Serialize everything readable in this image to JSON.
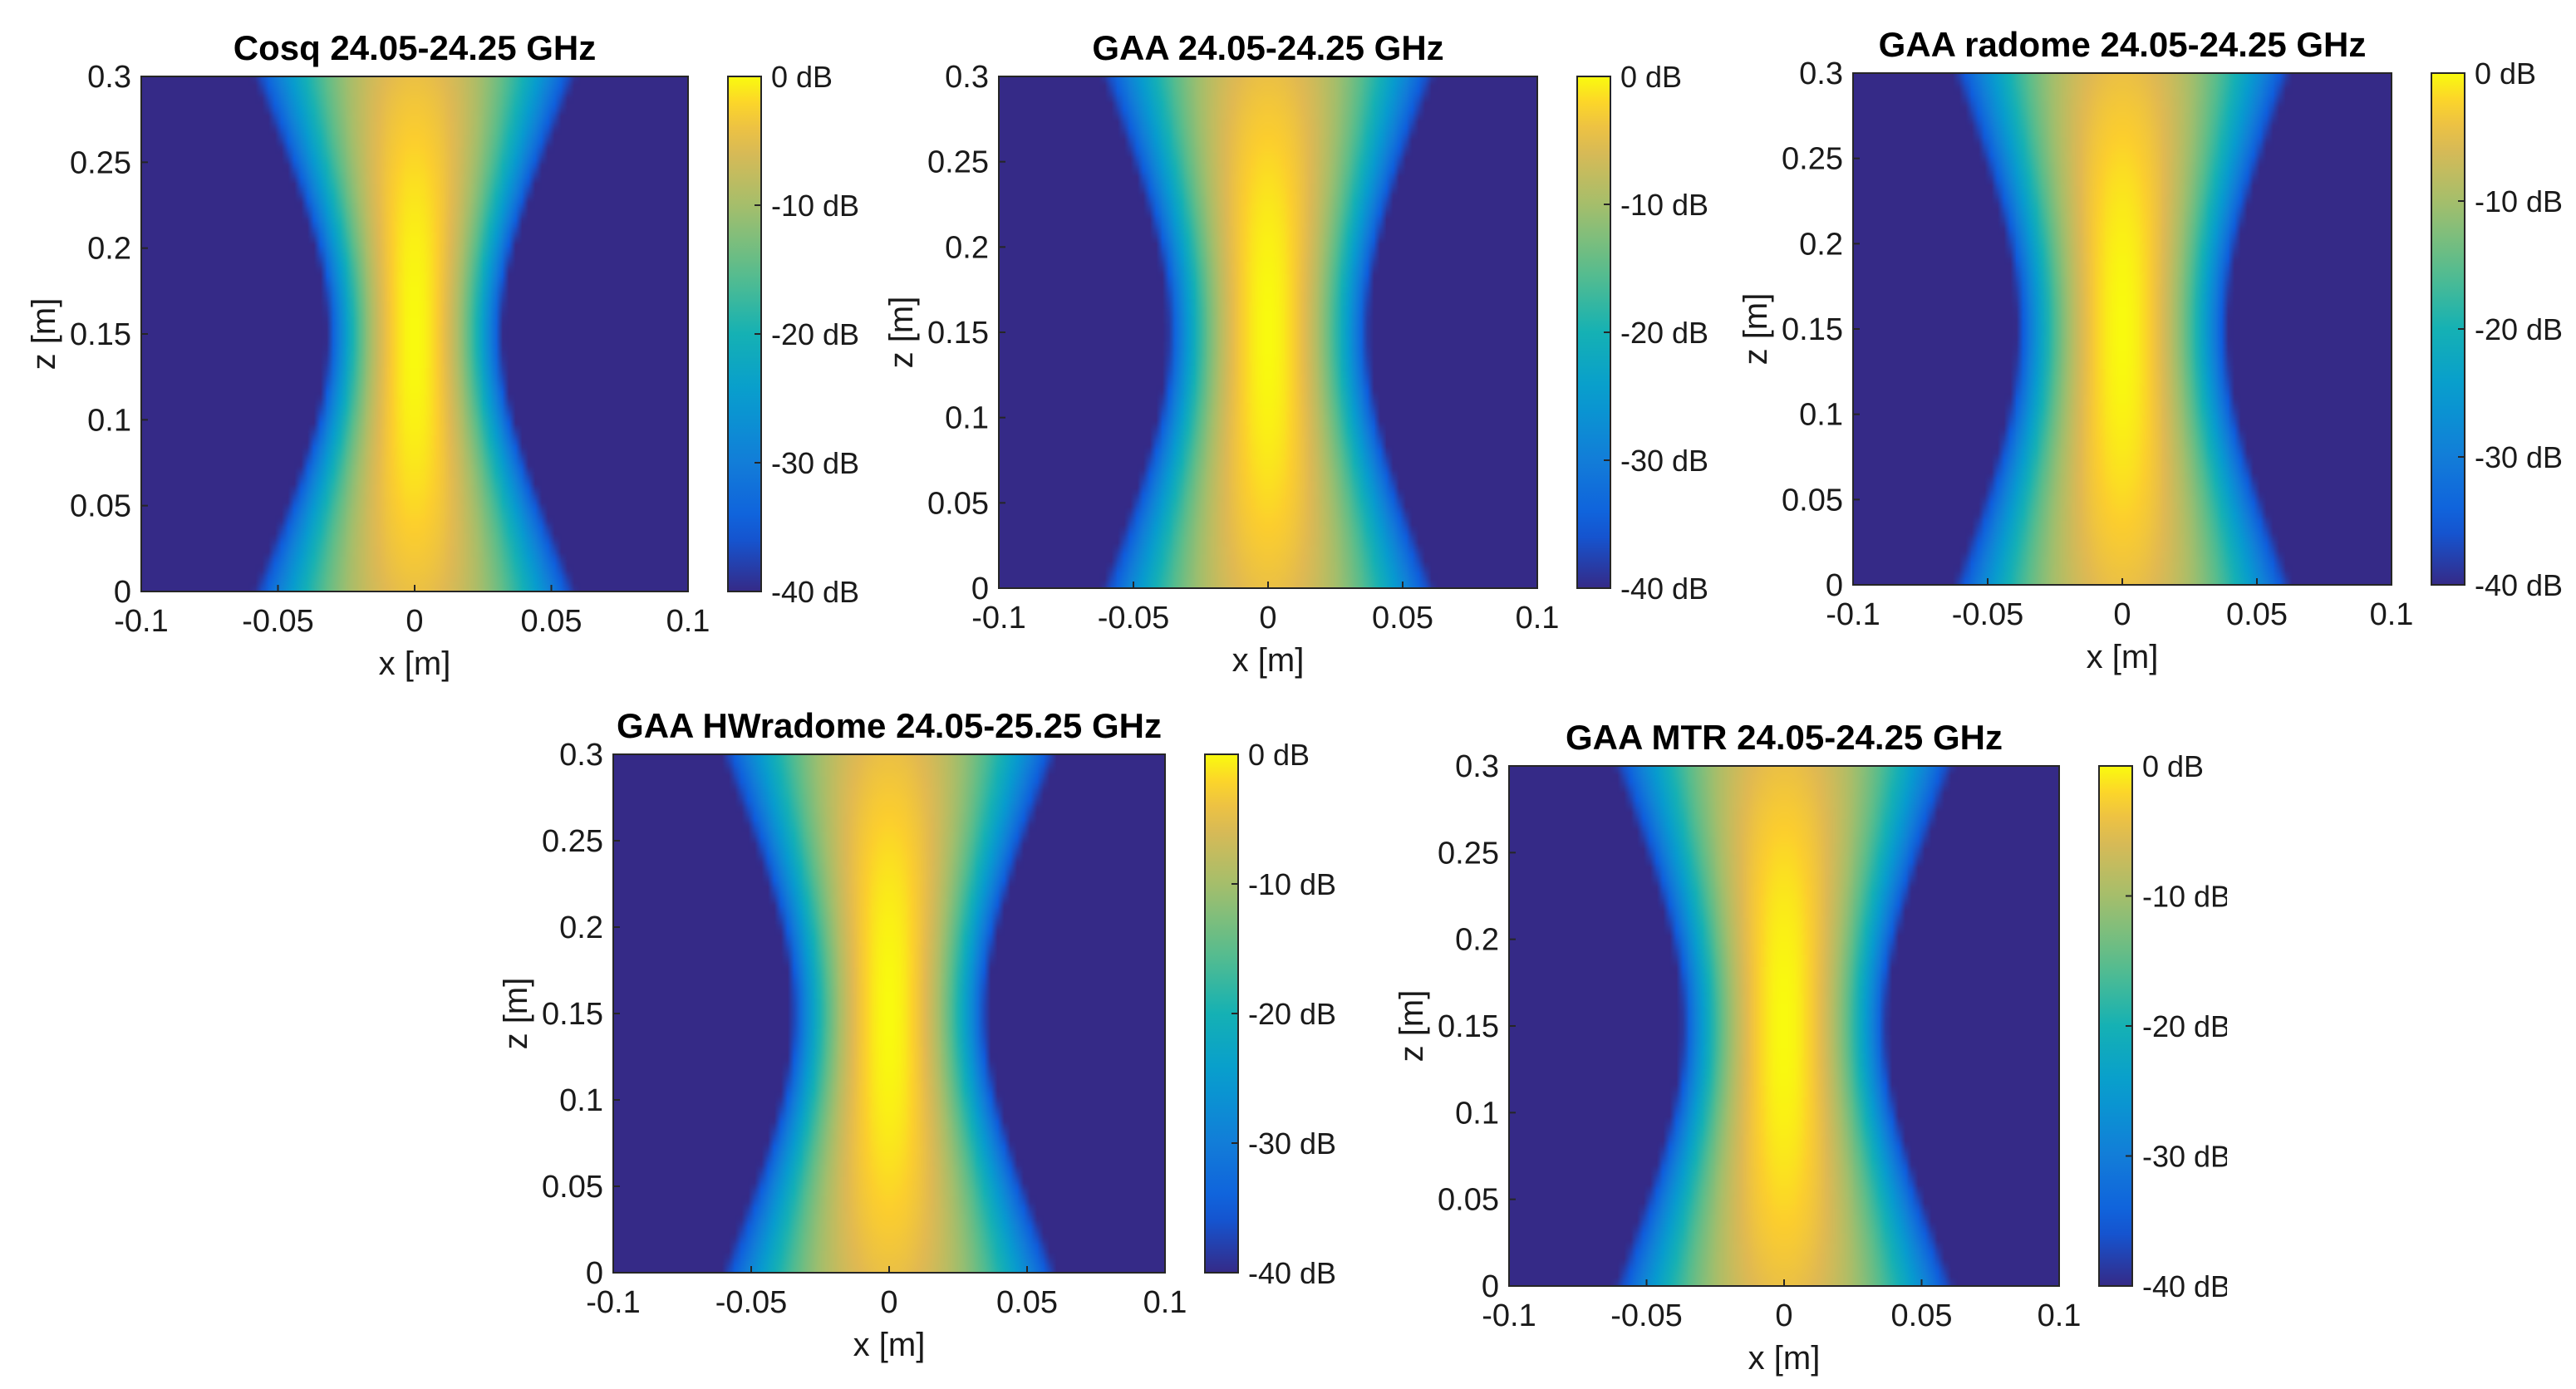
{
  "chart_data": [
    {
      "type": "heatmap",
      "title": "Cosq 24.05-24.25 GHz",
      "xlabel": "x [m]",
      "ylabel": "z [m]",
      "xlim": [
        -0.1,
        0.1
      ],
      "ylim": [
        0,
        0.3
      ],
      "xticks": [
        "-0.1",
        "-0.05",
        "0",
        "0.05",
        "0.1"
      ],
      "yticks": [
        "0",
        "0.05",
        "0.1",
        "0.15",
        "0.2",
        "0.25",
        "0.3"
      ],
      "colorbar_ticks": [
        "0 dB",
        "-10 dB",
        "-20 dB",
        "-30 dB",
        "-40 dB"
      ],
      "colorbar_range_db": [
        -40,
        0
      ],
      "focus_z": 0.15,
      "waist_halfwidth": 0.018
    },
    {
      "type": "heatmap",
      "title": "GAA 24.05-24.25 GHz",
      "xlabel": "x [m]",
      "ylabel": "z [m]",
      "xlim": [
        -0.1,
        0.1
      ],
      "ylim": [
        0,
        0.3
      ],
      "xticks": [
        "-0.1",
        "-0.05",
        "0",
        "0.05",
        "0.1"
      ],
      "yticks": [
        "0",
        "0.05",
        "0.1",
        "0.15",
        "0.2",
        "0.25",
        "0.3"
      ],
      "colorbar_ticks": [
        "0 dB",
        "-10 dB",
        "-20 dB",
        "-30 dB",
        "-40 dB"
      ],
      "colorbar_range_db": [
        -40,
        0
      ],
      "focus_z": 0.15,
      "waist_halfwidth": 0.021
    },
    {
      "type": "heatmap",
      "title": "GAA radome 24.05-24.25 GHz",
      "xlabel": "x [m]",
      "ylabel": "z [m]",
      "xlim": [
        -0.1,
        0.1
      ],
      "ylim": [
        0,
        0.3
      ],
      "xticks": [
        "-0.1",
        "-0.05",
        "0",
        "0.05",
        "0.1"
      ],
      "yticks": [
        "0",
        "0.05",
        "0.1",
        "0.15",
        "0.2",
        "0.25",
        "0.3"
      ],
      "colorbar_ticks": [
        "0 dB",
        "-10 dB",
        "-20 dB",
        "-30 dB",
        "-40 dB"
      ],
      "colorbar_range_db": [
        -40,
        0
      ],
      "focus_z": 0.15,
      "waist_halfwidth": 0.022
    },
    {
      "type": "heatmap",
      "title": "GAA HWradome 24.05-25.25 GHz",
      "xlabel": "x [m]",
      "ylabel": "z [m]",
      "xlim": [
        -0.1,
        0.1
      ],
      "ylim": [
        0,
        0.3
      ],
      "xticks": [
        "-0.1",
        "-0.05",
        "0",
        "0.05",
        "0.1"
      ],
      "yticks": [
        "0",
        "0.05",
        "0.1",
        "0.15",
        "0.2",
        "0.25",
        "0.3"
      ],
      "colorbar_ticks": [
        "0 dB",
        "-10 dB",
        "-20 dB",
        "-30 dB",
        "-40 dB"
      ],
      "colorbar_range_db": [
        -40,
        0
      ],
      "focus_z": 0.15,
      "waist_halfwidth": 0.02
    },
    {
      "type": "heatmap",
      "title": "GAA MTR 24.05-24.25 GHz",
      "xlabel": "x [m]",
      "ylabel": "z [m]",
      "xlim": [
        -0.1,
        0.1
      ],
      "ylim": [
        0,
        0.3
      ],
      "xticks": [
        "-0.1",
        "-0.05",
        "0",
        "0.05",
        "0.1"
      ],
      "yticks": [
        "0",
        "0.05",
        "0.1",
        "0.15",
        "0.2",
        "0.25",
        "0.3"
      ],
      "colorbar_ticks": [
        "0 dB",
        "-10 dB",
        "-20 dB",
        "-30 dB",
        "-40 dB"
      ],
      "colorbar_range_db": [
        -40,
        0
      ],
      "focus_z": 0.15,
      "waist_halfwidth": 0.021
    }
  ],
  "colors": {
    "colormap": "parula",
    "floor": "#3c2fa6",
    "peak": "#f9f91c",
    "axis_line": "#262626"
  }
}
